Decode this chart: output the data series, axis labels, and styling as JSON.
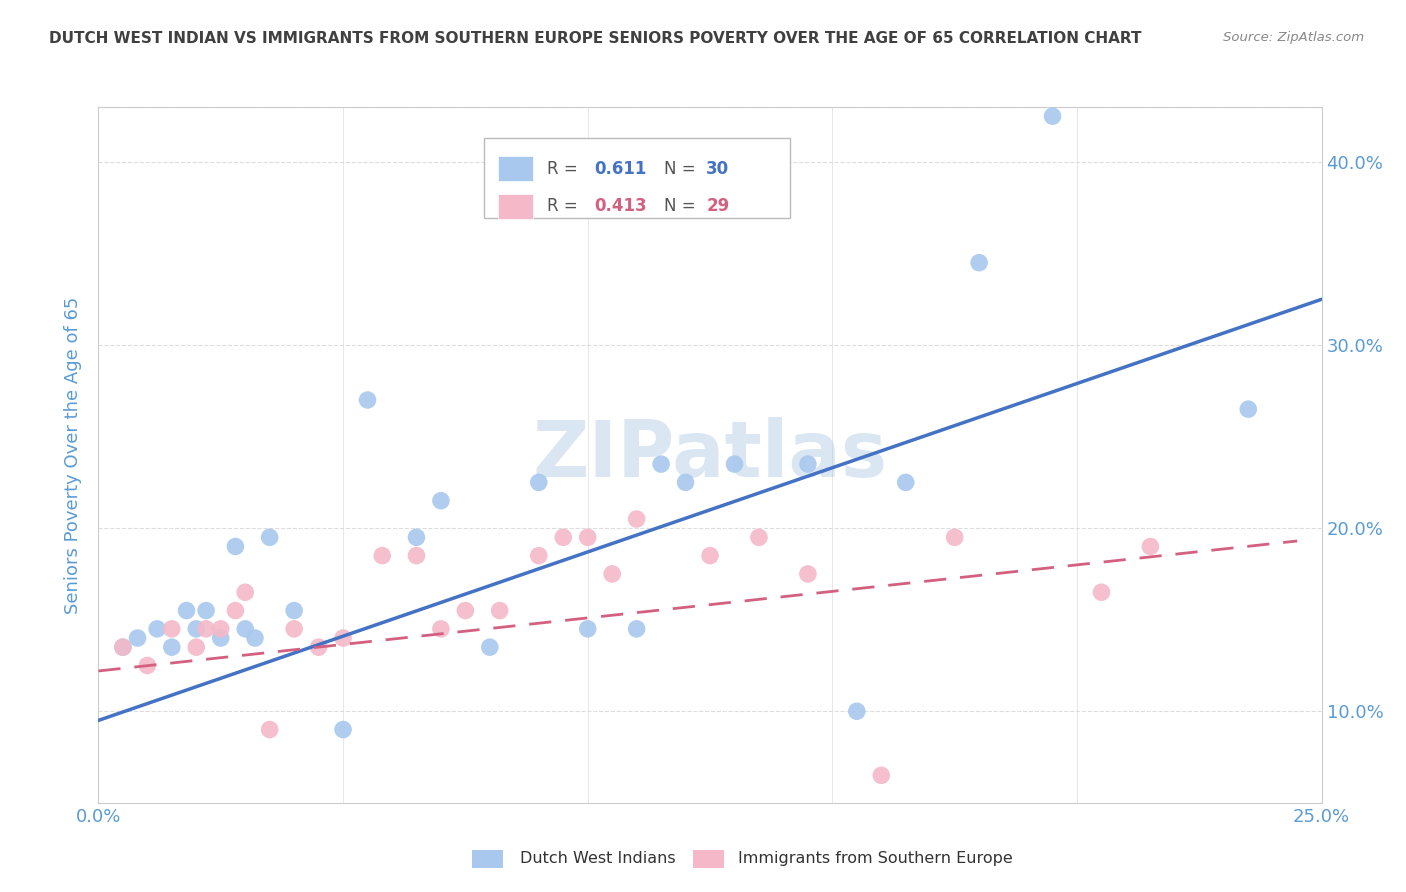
{
  "title": "DUTCH WEST INDIAN VS IMMIGRANTS FROM SOUTHERN EUROPE SENIORS POVERTY OVER THE AGE OF 65 CORRELATION CHART",
  "source": "Source: ZipAtlas.com",
  "ylabel": "Seniors Poverty Over the Age of 65",
  "xlim": [
    0,
    0.25
  ],
  "ylim": [
    0.05,
    0.43
  ],
  "xticks": [
    0.0,
    0.05,
    0.1,
    0.15,
    0.2,
    0.25
  ],
  "yticks": [
    0.1,
    0.2,
    0.3,
    0.4
  ],
  "ytick_labels": [
    "10.0%",
    "20.0%",
    "30.0%",
    "40.0%"
  ],
  "xtick_left_label": "0.0%",
  "xtick_right_label": "25.0%",
  "watermark": "ZIPatlas",
  "blue_color": "#A8C8EE",
  "pink_color": "#F4B8C8",
  "blue_line_color": "#4472C4",
  "pink_line_color": "#D46080",
  "blue_scatter": [
    [
      0.005,
      0.135
    ],
    [
      0.008,
      0.14
    ],
    [
      0.012,
      0.145
    ],
    [
      0.015,
      0.135
    ],
    [
      0.018,
      0.155
    ],
    [
      0.02,
      0.145
    ],
    [
      0.022,
      0.155
    ],
    [
      0.025,
      0.14
    ],
    [
      0.028,
      0.19
    ],
    [
      0.03,
      0.145
    ],
    [
      0.032,
      0.14
    ],
    [
      0.035,
      0.195
    ],
    [
      0.04,
      0.155
    ],
    [
      0.05,
      0.09
    ],
    [
      0.055,
      0.27
    ],
    [
      0.065,
      0.195
    ],
    [
      0.07,
      0.215
    ],
    [
      0.08,
      0.135
    ],
    [
      0.09,
      0.225
    ],
    [
      0.1,
      0.145
    ],
    [
      0.11,
      0.145
    ],
    [
      0.115,
      0.235
    ],
    [
      0.12,
      0.225
    ],
    [
      0.13,
      0.235
    ],
    [
      0.145,
      0.235
    ],
    [
      0.155,
      0.1
    ],
    [
      0.165,
      0.225
    ],
    [
      0.18,
      0.345
    ],
    [
      0.195,
      0.425
    ],
    [
      0.235,
      0.265
    ]
  ],
  "pink_scatter": [
    [
      0.005,
      0.135
    ],
    [
      0.01,
      0.125
    ],
    [
      0.015,
      0.145
    ],
    [
      0.02,
      0.135
    ],
    [
      0.022,
      0.145
    ],
    [
      0.025,
      0.145
    ],
    [
      0.028,
      0.155
    ],
    [
      0.03,
      0.165
    ],
    [
      0.035,
      0.09
    ],
    [
      0.04,
      0.145
    ],
    [
      0.045,
      0.135
    ],
    [
      0.05,
      0.14
    ],
    [
      0.058,
      0.185
    ],
    [
      0.065,
      0.185
    ],
    [
      0.07,
      0.145
    ],
    [
      0.075,
      0.155
    ],
    [
      0.082,
      0.155
    ],
    [
      0.09,
      0.185
    ],
    [
      0.095,
      0.195
    ],
    [
      0.1,
      0.195
    ],
    [
      0.105,
      0.175
    ],
    [
      0.11,
      0.205
    ],
    [
      0.125,
      0.185
    ],
    [
      0.135,
      0.195
    ],
    [
      0.145,
      0.175
    ],
    [
      0.16,
      0.065
    ],
    [
      0.175,
      0.195
    ],
    [
      0.205,
      0.165
    ],
    [
      0.215,
      0.19
    ]
  ],
  "blue_line_x": [
    0.0,
    0.25
  ],
  "blue_line_y": [
    0.095,
    0.325
  ],
  "pink_line_x": [
    0.0,
    0.245
  ],
  "pink_line_y": [
    0.122,
    0.193
  ],
  "bg_color": "#FFFFFF",
  "grid_color": "#DDDDDD",
  "title_color": "#404040",
  "source_color": "#888888",
  "axis_label_color": "#5B9BD5",
  "tick_label_color": "#5B9BD5"
}
